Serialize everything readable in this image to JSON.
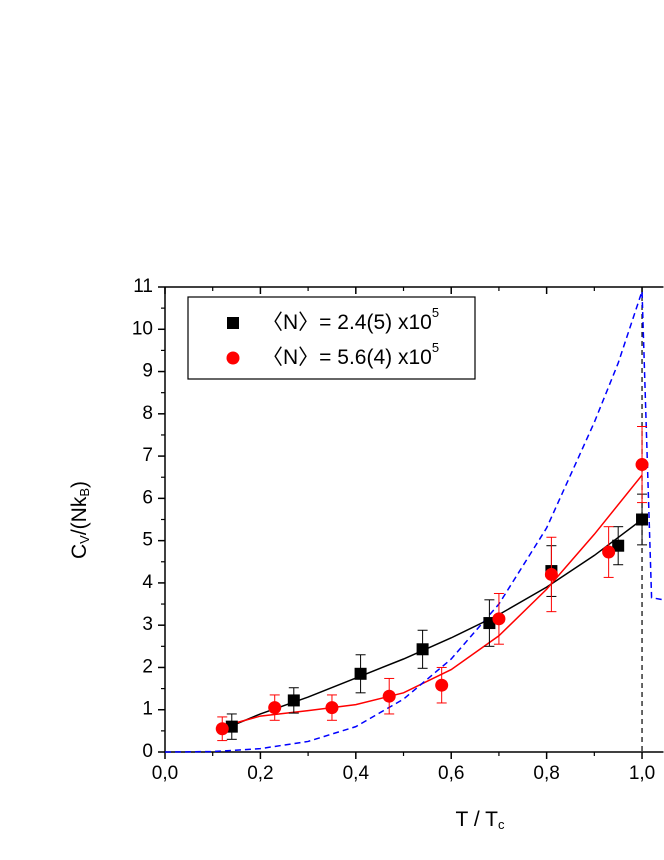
{
  "chart_data": {
    "type": "scatter",
    "xlim": [
      0,
      1.045
    ],
    "ylim": [
      0,
      11
    ],
    "xticks": [
      {
        "value": 0,
        "label": "0,0"
      },
      {
        "value": 0.2,
        "label": "0,2"
      },
      {
        "value": 0.4,
        "label": "0,4"
      },
      {
        "value": 0.6,
        "label": "0,6"
      },
      {
        "value": 0.8,
        "label": "0,8"
      },
      {
        "value": 1.0,
        "label": "1,0"
      }
    ],
    "yticks": [
      0,
      1,
      2,
      3,
      4,
      5,
      6,
      7,
      8,
      9,
      10,
      11
    ],
    "xlabel": {
      "main": "T / T",
      "sub": "c"
    },
    "ylabel": {
      "main": "C",
      "sub": "V",
      "mid": "/(Nk",
      "sub2": "B",
      "end": ")"
    },
    "series": [
      {
        "name": "〈N〉= 2.4(5) x10",
        "superscript": "5",
        "color": "#000000",
        "marker": "square",
        "x": [
          0.14,
          0.27,
          0.41,
          0.54,
          0.68,
          0.81,
          0.95,
          1.0
        ],
        "values": [
          0.6,
          1.22,
          1.85,
          2.43,
          3.05,
          4.28,
          4.88,
          5.5
        ],
        "errors": [
          0.3,
          0.3,
          0.45,
          0.45,
          0.55,
          0.6,
          0.45,
          0.6
        ]
      },
      {
        "name": "〈N〉= 5.6(4) x10",
        "superscript": "5",
        "color": "#ff0000",
        "marker": "circle",
        "x": [
          0.12,
          0.23,
          0.35,
          0.47,
          0.58,
          0.7,
          0.81,
          0.93,
          1.0
        ],
        "values": [
          0.55,
          1.05,
          1.05,
          1.32,
          1.58,
          3.15,
          4.2,
          4.73,
          6.8
        ],
        "errors": [
          0.28,
          0.3,
          0.3,
          0.42,
          0.42,
          0.6,
          0.88,
          0.6,
          0.9
        ]
      }
    ],
    "curves": [
      {
        "color": "#000000",
        "dash": false,
        "x": [
          0.14,
          0.2,
          0.3,
          0.4,
          0.5,
          0.6,
          0.7,
          0.8,
          0.9,
          1.0
        ],
        "values": [
          0.62,
          0.9,
          1.3,
          1.75,
          2.2,
          2.7,
          3.25,
          3.9,
          4.65,
          5.5
        ]
      },
      {
        "color": "#ff0000",
        "dash": false,
        "x": [
          0.12,
          0.2,
          0.3,
          0.4,
          0.5,
          0.6,
          0.7,
          0.8,
          0.9,
          1.0
        ],
        "values": [
          0.6,
          0.85,
          0.98,
          1.12,
          1.4,
          1.95,
          2.75,
          3.85,
          5.15,
          6.55
        ]
      },
      {
        "color": "#0000ff",
        "dash": true,
        "x": [
          0,
          0.1,
          0.2,
          0.3,
          0.4,
          0.5,
          0.6,
          0.7,
          0.8,
          0.9,
          0.95,
          1.0,
          1.02,
          1.045
        ],
        "values": [
          0,
          0.01,
          0.08,
          0.25,
          0.6,
          1.25,
          2.2,
          3.5,
          5.3,
          7.8,
          9.2,
          10.9,
          3.65,
          3.6
        ]
      }
    ],
    "vline": 1.0
  }
}
